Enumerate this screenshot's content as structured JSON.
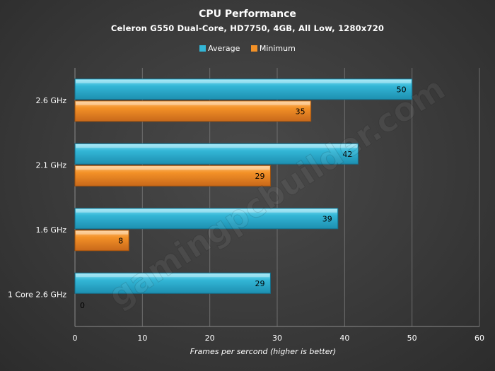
{
  "chart_data": {
    "type": "bar",
    "orientation": "horizontal",
    "title": "CPU Performance",
    "subtitle": "Celeron  G550 Dual-Core,  HD7750,  4GB,  All Low,  1280x720",
    "categories": [
      "2.6 GHz",
      "2.1 GHz",
      "1.6 GHz",
      "1 Core 2.6 GHz"
    ],
    "series": [
      {
        "name": "Average",
        "values": [
          50,
          42,
          39,
          29
        ],
        "color": "#33b6d6"
      },
      {
        "name": "Minimum",
        "values": [
          35,
          29,
          8,
          0
        ],
        "color": "#f39127"
      }
    ],
    "xlabel": "Frames  per sercond  (higher is better)",
    "xlim": [
      0,
      60
    ],
    "xticks": [
      0,
      10,
      20,
      30,
      40,
      50,
      60
    ],
    "grid": true,
    "legend_position": "top",
    "watermark": "gamingpcbuilder.com"
  }
}
